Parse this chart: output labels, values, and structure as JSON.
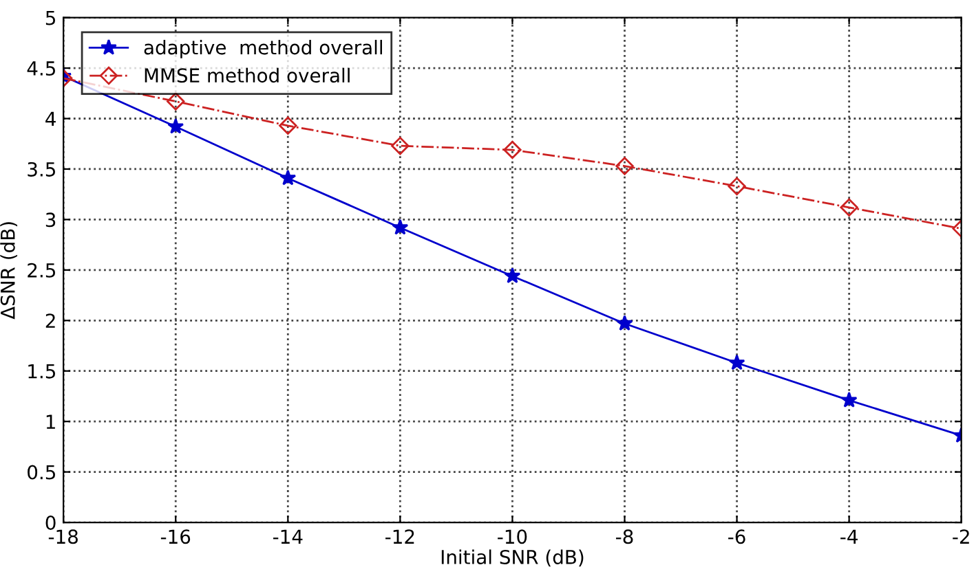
{
  "chart_data": {
    "type": "line",
    "xlabel": "Initial SNR (dB)",
    "ylabel": "ΔSNR (dB)",
    "x": [
      -18,
      -16,
      -14,
      -12,
      -10,
      -8,
      -6,
      -4,
      -2
    ],
    "series": [
      {
        "name": "adaptive  method overall",
        "color": "#0000cc",
        "marker": "star",
        "line_style": "solid",
        "values": [
          4.42,
          3.92,
          3.41,
          2.92,
          2.44,
          1.97,
          1.58,
          1.21,
          0.86
        ]
      },
      {
        "name": "MMSE method overall",
        "color": "#cc2222",
        "marker": "diamond",
        "line_style": "dashdot",
        "values": [
          4.4,
          4.17,
          3.93,
          3.73,
          3.69,
          3.53,
          3.33,
          3.12,
          2.91
        ]
      }
    ],
    "xlim": [
      -18,
      -2
    ],
    "ylim": [
      0,
      5
    ],
    "xticks": [
      -18,
      -16,
      -14,
      -12,
      -10,
      -8,
      -6,
      -4,
      -2
    ],
    "yticks": [
      0,
      0.5,
      1,
      1.5,
      2,
      2.5,
      3,
      3.5,
      4,
      4.5,
      5
    ],
    "grid": true,
    "legend": "top left"
  }
}
